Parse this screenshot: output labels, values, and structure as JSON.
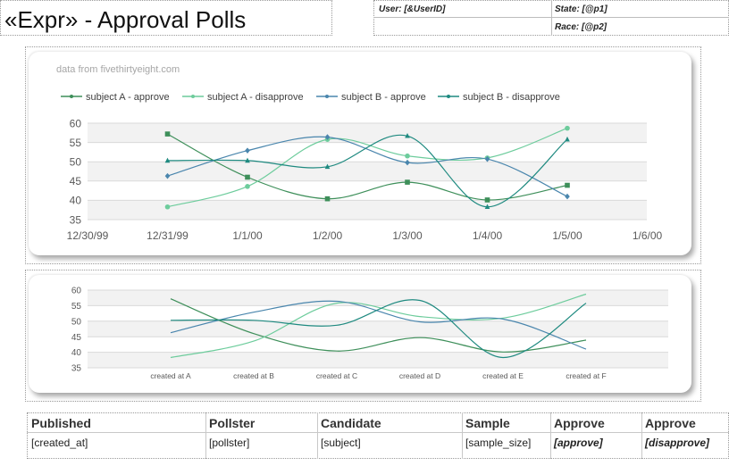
{
  "title": "«Expr» - Approval Polls",
  "header": {
    "user": "User: [&UserID]",
    "state": "State: [@p1]",
    "race": "Race: [@p2]"
  },
  "chart1": {
    "source_note": "data from fivethirtyeight.com",
    "x_tick_labels": [
      "12/30/99",
      "12/31/99",
      "1/1/00",
      "1/2/00",
      "1/3/00",
      "1/4/00",
      "1/5/00",
      "1/6/00"
    ],
    "y_tick_labels": [
      "60",
      "55",
      "50",
      "45",
      "40",
      "35"
    ]
  },
  "chart2": {
    "x_tick_labels": [
      "created at A",
      "created at B",
      "created at C",
      "created at D",
      "created at E",
      "created at F"
    ],
    "y_tick_labels": [
      "60",
      "55",
      "50",
      "45",
      "40",
      "35"
    ]
  },
  "chart_data": [
    {
      "type": "line",
      "title": "",
      "xlabel": "",
      "ylabel": "",
      "x": [
        "12/31/99",
        "1/1/00",
        "1/2/00",
        "1/3/00",
        "1/4/00",
        "1/5/00"
      ],
      "ylim": [
        35,
        60
      ],
      "xlim": [
        "12/30/99",
        "1/6/00"
      ],
      "grid": true,
      "legend": "top",
      "smooth": true,
      "series": [
        {
          "name": "subject A - approve",
          "color": "#3e8f5a",
          "marker": "square",
          "values": [
            57.2,
            46,
            40.4,
            44.7,
            40.1,
            43.9
          ]
        },
        {
          "name": "subject A - disapprove",
          "color": "#6dcc9c",
          "marker": "circle",
          "values": [
            38.3,
            43.6,
            55.8,
            51.5,
            51,
            58.7
          ]
        },
        {
          "name": "subject B - approve",
          "color": "#4a86ad",
          "marker": "diamond",
          "values": [
            46.3,
            52.9,
            56.4,
            49.8,
            50.7,
            41
          ]
        },
        {
          "name": "subject B - disapprove",
          "color": "#1f8a80",
          "marker": "triangle",
          "values": [
            50.3,
            50.3,
            48.7,
            56.7,
            38.3,
            55.8
          ]
        }
      ]
    },
    {
      "type": "line",
      "title": "",
      "xlabel": "",
      "ylabel": "",
      "categories": [
        "created at A",
        "created at B",
        "created at C",
        "created at D",
        "created at E",
        "created at F"
      ],
      "ylim": [
        35,
        60
      ],
      "grid": true,
      "legend": "none",
      "smooth": true,
      "series": [
        {
          "color": "#3e8f5a",
          "values": [
            57.2,
            46,
            40.4,
            44.7,
            40.1,
            43.9
          ]
        },
        {
          "color": "#6dcc9c",
          "values": [
            38.3,
            43.6,
            55.8,
            51.5,
            51,
            58.7
          ]
        },
        {
          "color": "#4a86ad",
          "values": [
            46.3,
            52.9,
            56.4,
            49.8,
            50.7,
            41
          ]
        },
        {
          "color": "#1f8a80",
          "values": [
            50.3,
            50.3,
            48.7,
            56.7,
            38.3,
            55.8
          ]
        }
      ]
    }
  ],
  "table": {
    "headers": [
      "Published",
      "Pollster",
      "Candidate",
      "Sample",
      "Approve",
      "Approve"
    ],
    "row": [
      "[created_at]",
      "[pollster]",
      "[subject]",
      "[sample_size]",
      "[approve]",
      "[disapprove]"
    ]
  }
}
